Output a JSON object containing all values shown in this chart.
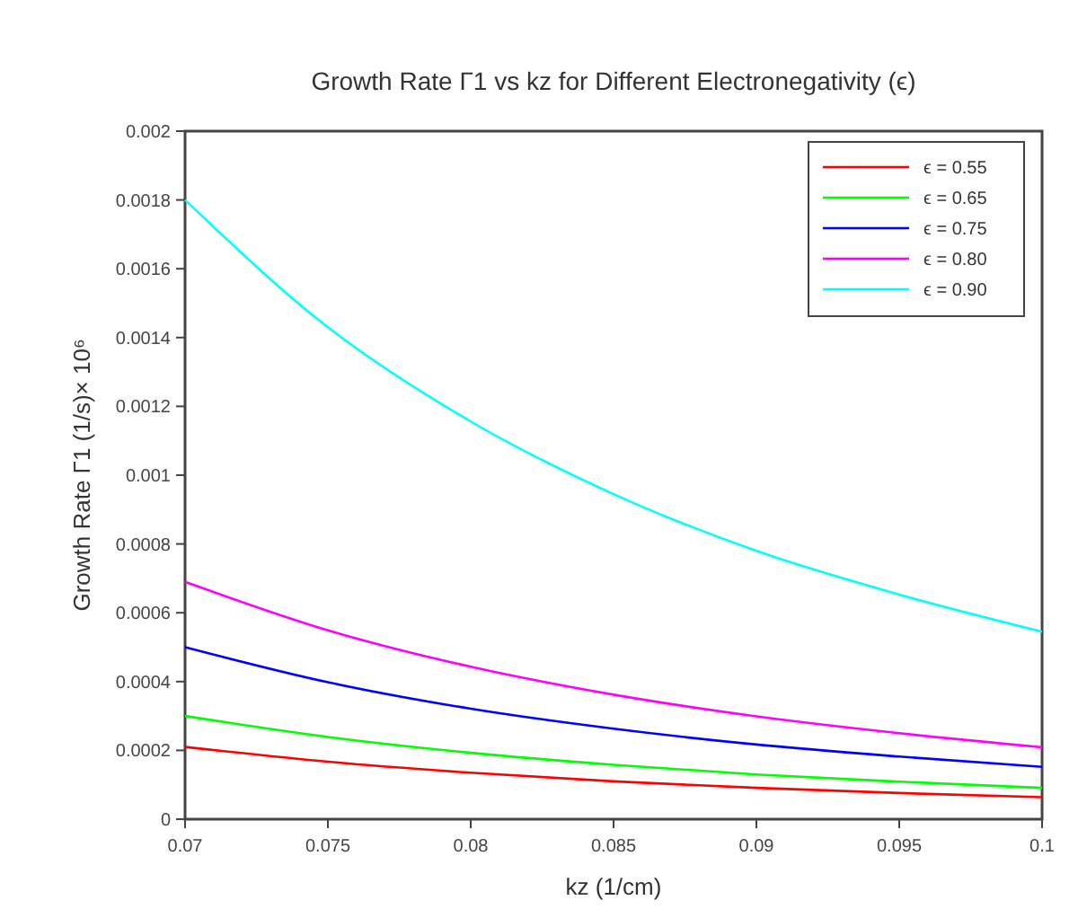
{
  "chart_data": {
    "type": "line",
    "title": "Growth Rate Γ1 vs kz for Different Electronegativity (ϵ)",
    "xlabel": "kz (1/cm)",
    "ylabel": "Growth Rate Γ1 (1/s)× 10⁶",
    "x": [
      0.07,
      0.075,
      0.08,
      0.085,
      0.09,
      0.095,
      0.1
    ],
    "series": [
      {
        "name": "ϵ = 0.55",
        "color": "#ff0000",
        "values": [
          0.00021,
          0.000167,
          0.000135,
          0.00011,
          9.1e-05,
          7.6e-05,
          6.4e-05
        ]
      },
      {
        "name": "ϵ = 0.65",
        "color": "#00ff00",
        "values": [
          0.0003,
          0.000239,
          0.000193,
          0.000158,
          0.00013,
          0.000109,
          9.1e-05
        ]
      },
      {
        "name": "ϵ = 0.75",
        "color": "#0000ff",
        "values": [
          0.0005,
          0.000398,
          0.000321,
          0.000263,
          0.000217,
          0.000182,
          0.000152
        ]
      },
      {
        "name": "ϵ = 0.80",
        "color": "#ff00ff",
        "values": [
          0.00069,
          0.000549,
          0.000443,
          0.000362,
          0.000299,
          0.00025,
          0.000209
        ]
      },
      {
        "name": "ϵ = 0.90",
        "color": "#00ffff",
        "values": [
          0.0018,
          0.00143,
          0.001156,
          0.000945,
          0.00078,
          0.000653,
          0.000545
        ]
      }
    ],
    "xlim": [
      0.07,
      0.1
    ],
    "xticks": [
      0.07,
      0.075,
      0.08,
      0.085,
      0.09,
      0.095,
      0.1
    ],
    "ylim": [
      0,
      0.002
    ],
    "yticks": [
      0,
      0.0002,
      0.0004,
      0.0006,
      0.0008,
      0.001,
      0.0012,
      0.0014,
      0.0016,
      0.0018,
      0.002
    ],
    "grid": false,
    "legend": "top right",
    "marker": "none",
    "line_style": "solid"
  }
}
